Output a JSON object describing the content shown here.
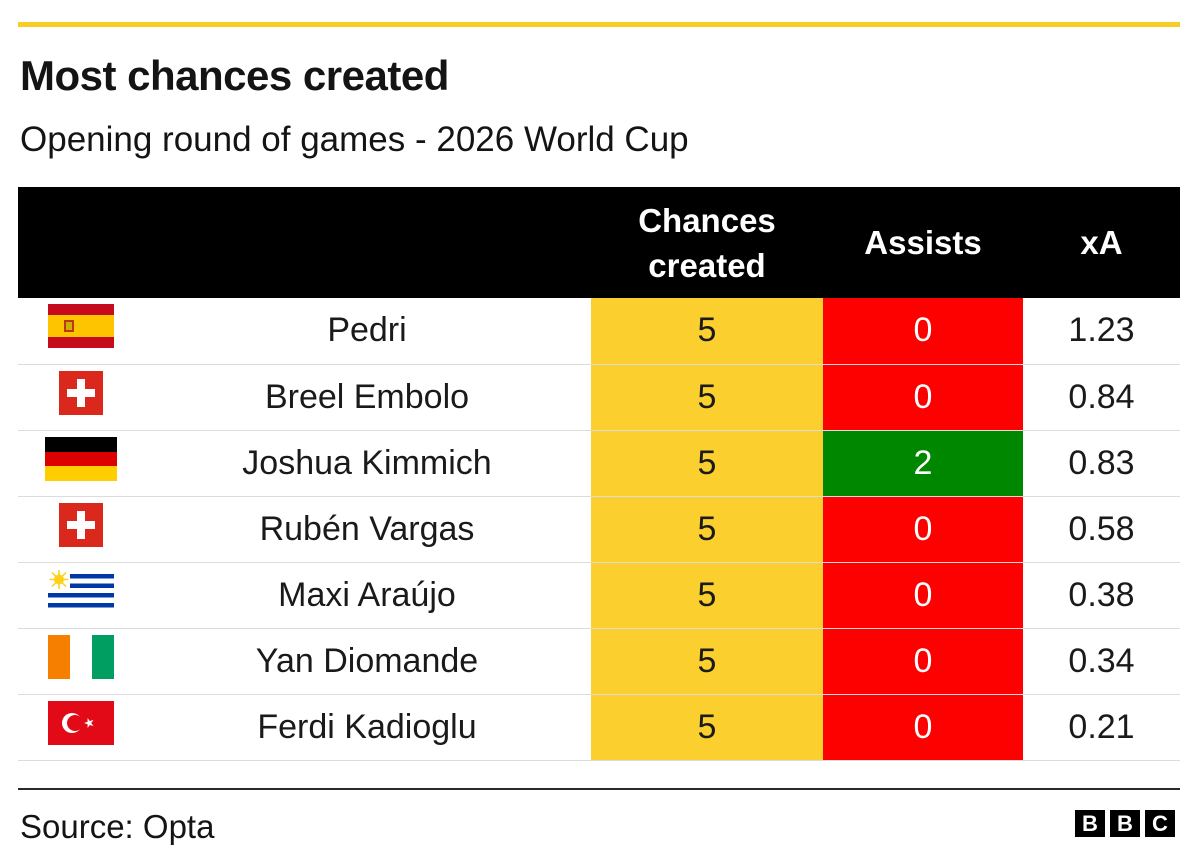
{
  "accent_color": "#f8cd25",
  "title": "Most chances created",
  "subtitle": "Opening round of games - 2026 World Cup",
  "source": "Source: Opta",
  "logo": [
    "B",
    "B",
    "C"
  ],
  "colors": {
    "header_bg": "#000000",
    "chances_bg": "#fbd02e",
    "assists_zero": "#fd0000",
    "assists_positive": "#008700"
  },
  "chart_data": {
    "type": "table",
    "columns": [
      "",
      "",
      "Chances\ncreated",
      "Assists",
      "xA"
    ],
    "rows": [
      {
        "flag": "spain",
        "player": "Pedri",
        "chances_created": "5",
        "assists": "0",
        "xa": "1.23"
      },
      {
        "flag": "switzerland",
        "player": "Breel Embolo",
        "chances_created": "5",
        "assists": "0",
        "xa": "0.84"
      },
      {
        "flag": "germany",
        "player": "Joshua Kimmich",
        "chances_created": "5",
        "assists": "2",
        "xa": "0.83"
      },
      {
        "flag": "switzerland",
        "player": "Rubén Vargas",
        "chances_created": "5",
        "assists": "0",
        "xa": "0.58"
      },
      {
        "flag": "uruguay",
        "player": "Maxi Araújo",
        "chances_created": "5",
        "assists": "0",
        "xa": "0.38"
      },
      {
        "flag": "ivory-coast",
        "player": "Yan Diomande",
        "chances_created": "5",
        "assists": "0",
        "xa": "0.34"
      },
      {
        "flag": "turkey",
        "player": "Ferdi Kadioglu",
        "chances_created": "5",
        "assists": "0",
        "xa": "0.21"
      }
    ]
  }
}
